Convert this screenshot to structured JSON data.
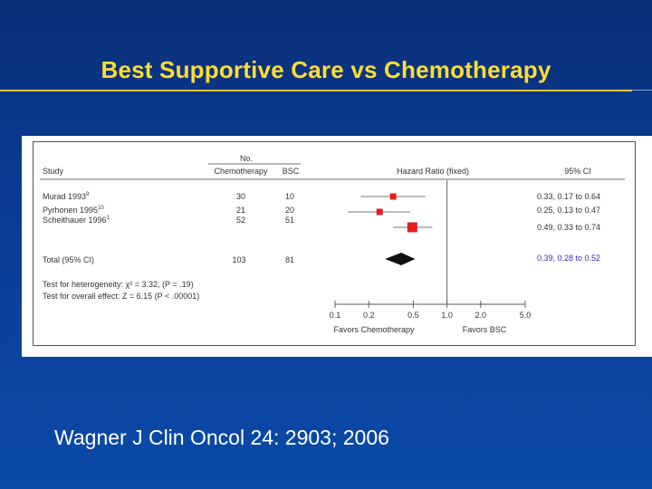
{
  "slide": {
    "title": "Best Supportive Care vs Chemotherapy",
    "citation": "Wagner J Clin Oncol 24: 2903; 2006"
  },
  "colors": {
    "background": "#0b3d96",
    "title": "#ffdd33",
    "marker": "#e02020",
    "pooled": "#111111",
    "total_ci_text": "#3a2ab0"
  },
  "chart_data": {
    "type": "forest",
    "scale": "log",
    "xlim": [
      0.1,
      5.0
    ],
    "xticks": [
      {
        "value": 0.1,
        "label": "0.1"
      },
      {
        "value": 0.2,
        "label": "0.2"
      },
      {
        "value": 0.5,
        "label": "0.5"
      },
      {
        "value": 1.0,
        "label": "1.0"
      },
      {
        "value": 2.0,
        "label": "2.0"
      },
      {
        "value": 5.0,
        "label": "5.0"
      }
    ],
    "reference_line": 1.0,
    "headers": {
      "study": "Study",
      "no": "No.",
      "chemo": "Chemotherapy",
      "bsc": "BSC",
      "hr": "Hazard Ratio (fixed)",
      "ci": "95% CI"
    },
    "studies": [
      {
        "study": "Murad 1993",
        "ref": "9",
        "chemo_n": "30",
        "bsc_n": "10",
        "hr": 0.33,
        "lo": 0.17,
        "hi": 0.64,
        "ci_text": "0.33, 0.17 to 0.64"
      },
      {
        "study": "Pyrhonen 1995",
        "ref": "10",
        "chemo_n": "21",
        "bsc_n": "20",
        "hr": 0.25,
        "lo": 0.13,
        "hi": 0.47,
        "ci_text": "0.25, 0.13 to 0.47"
      },
      {
        "study": "Scheithauer 1996",
        "ref": "1",
        "chemo_n": "52",
        "bsc_n": "51",
        "hr": 0.49,
        "lo": 0.33,
        "hi": 0.74,
        "ci_text": "0.49, 0.33 to 0.74"
      }
    ],
    "total": {
      "label": "Total (95% CI)",
      "chemo_n": "103",
      "bsc_n": "81",
      "hr": 0.39,
      "lo": 0.28,
      "hi": 0.52,
      "ci_text": "0.39, 0.28 to 0.52"
    },
    "tests": {
      "heterogeneity": "Test for heterogeneity: χ² = 3.32, (P = .19)",
      "overall": "Test for overall  effect: Z = 6.15 (P < .00001)"
    },
    "favors_left": "Favors Chemotherapy",
    "favors_right": "Favors BSC"
  }
}
